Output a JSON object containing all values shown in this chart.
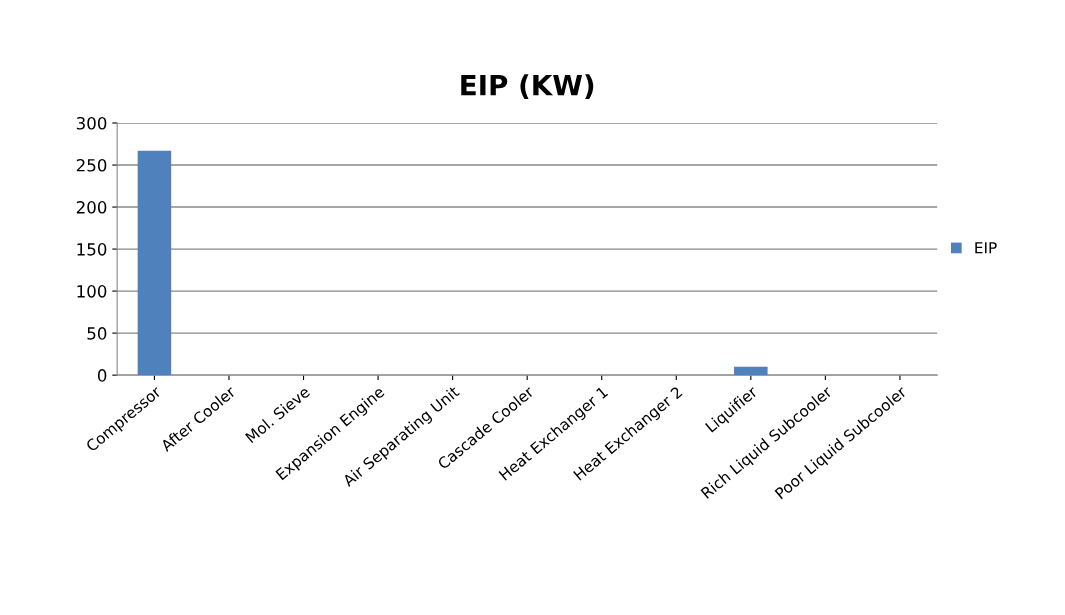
{
  "chart_data": {
    "type": "bar",
    "title": "EIP (KW)",
    "categories": [
      "Compressor",
      "After Cooler",
      "Mol. Sieve",
      "Expansion Engine",
      "Air Separating Unit",
      "Cascade Cooler",
      "Heat Exchanger 1",
      "Heat Exchanger 2",
      "Liquifier",
      "Rich Liquid Subcooler",
      "Poor Liquid Subcooler"
    ],
    "series": [
      {
        "name": "EIP",
        "color": "#4f81bd",
        "values": [
          267,
          0,
          0,
          0,
          0,
          0,
          0,
          0,
          10,
          0,
          0
        ]
      }
    ],
    "ylim": [
      0,
      300
    ],
    "yticks": [
      0,
      50,
      100,
      150,
      200,
      250,
      300
    ],
    "grid": "y",
    "legend": "right"
  }
}
